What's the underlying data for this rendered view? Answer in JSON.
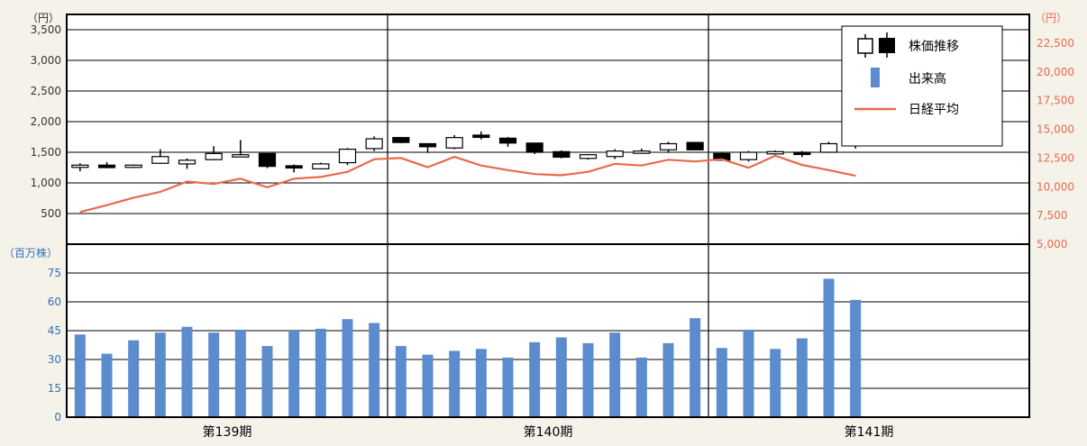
{
  "chart_data": {
    "type": "candlestick+line+bar",
    "units": {
      "price": "（円）",
      "nikkei": "（円）",
      "volume": "（百万株）"
    },
    "periods": [
      "第139期",
      "第140期",
      "第141期"
    ],
    "price_axis": {
      "ylim": [
        0,
        3750
      ],
      "ticks": [
        500,
        1000,
        1500,
        2000,
        2500,
        3000,
        3500
      ],
      "tick_labels": [
        "500",
        "1,000",
        "1,500",
        "2,000",
        "2,500",
        "3,000",
        "3,500"
      ]
    },
    "nikkei_axis": {
      "ylim": [
        5000,
        25000
      ],
      "ticks": [
        5000,
        7500,
        10000,
        12500,
        15000,
        17500,
        20000,
        22500
      ],
      "tick_labels": [
        "5,000",
        "7,500",
        "10,000",
        "12,500",
        "15,000",
        "17,500",
        "20,000",
        "22,500"
      ]
    },
    "volume_axis": {
      "ylim": [
        0,
        90
      ],
      "ticks": [
        0,
        15,
        30,
        45,
        60,
        75
      ],
      "tick_labels": [
        "0",
        "15",
        "30",
        "45",
        "60",
        "75"
      ]
    },
    "legend": {
      "candle": "株価推移",
      "volume": "出来高",
      "nikkei": "日経平均"
    },
    "colors": {
      "volume_bar": "#5b8ccd",
      "nikkei_line": "#e86a4c",
      "price_axis_text": "#333333",
      "nikkei_axis_text": "#e86a4c",
      "volume_axis_text": "#3070b8",
      "candle_down": "#000000",
      "candle_up": "#ffffff",
      "background": "#f5f2ea",
      "plot_bg": "#ffffff"
    },
    "candles": [
      {
        "o": 1290,
        "h": 1320,
        "l": 1190,
        "c": 1290
      },
      {
        "o": 1290,
        "h": 1340,
        "l": 1240,
        "c": 1250
      },
      {
        "o": 1260,
        "h": 1300,
        "l": 1240,
        "c": 1290
      },
      {
        "o": 1320,
        "h": 1550,
        "l": 1310,
        "c": 1430
      },
      {
        "o": 1310,
        "h": 1400,
        "l": 1230,
        "c": 1370
      },
      {
        "o": 1380,
        "h": 1600,
        "l": 1370,
        "c": 1480
      },
      {
        "o": 1450,
        "h": 1700,
        "l": 1430,
        "c": 1460
      },
      {
        "o": 1480,
        "h": 1480,
        "l": 1240,
        "c": 1270
      },
      {
        "o": 1280,
        "h": 1300,
        "l": 1170,
        "c": 1250
      },
      {
        "o": 1230,
        "h": 1330,
        "l": 1220,
        "c": 1310
      },
      {
        "o": 1330,
        "h": 1570,
        "l": 1290,
        "c": 1550
      },
      {
        "o": 1560,
        "h": 1760,
        "l": 1520,
        "c": 1720
      },
      {
        "o": 1740,
        "h": 1740,
        "l": 1650,
        "c": 1660
      },
      {
        "o": 1640,
        "h": 1640,
        "l": 1490,
        "c": 1590
      },
      {
        "o": 1570,
        "h": 1780,
        "l": 1550,
        "c": 1740
      },
      {
        "o": 1780,
        "h": 1840,
        "l": 1710,
        "c": 1750
      },
      {
        "o": 1730,
        "h": 1750,
        "l": 1590,
        "c": 1650
      },
      {
        "o": 1650,
        "h": 1650,
        "l": 1470,
        "c": 1500
      },
      {
        "o": 1510,
        "h": 1530,
        "l": 1400,
        "c": 1420
      },
      {
        "o": 1400,
        "h": 1470,
        "l": 1380,
        "c": 1460
      },
      {
        "o": 1430,
        "h": 1550,
        "l": 1390,
        "c": 1520
      },
      {
        "o": 1500,
        "h": 1560,
        "l": 1480,
        "c": 1520
      },
      {
        "o": 1540,
        "h": 1670,
        "l": 1490,
        "c": 1640
      },
      {
        "o": 1660,
        "h": 1660,
        "l": 1540,
        "c": 1540
      },
      {
        "o": 1480,
        "h": 1490,
        "l": 1370,
        "c": 1370
      },
      {
        "o": 1380,
        "h": 1520,
        "l": 1350,
        "c": 1500
      },
      {
        "o": 1480,
        "h": 1530,
        "l": 1460,
        "c": 1510
      },
      {
        "o": 1500,
        "h": 1520,
        "l": 1420,
        "c": 1470
      },
      {
        "o": 1500,
        "h": 1670,
        "l": 1490,
        "c": 1640
      },
      {
        "o": 1610,
        "h": 1900,
        "l": 1560,
        "c": 1820
      }
    ],
    "nikkei": [
      7800,
      8400,
      9050,
      9550,
      10450,
      10250,
      10700,
      9950,
      10700,
      10850,
      11300,
      12400,
      12500,
      11700,
      12600,
      11850,
      11450,
      11100,
      11000,
      11300,
      12000,
      11850,
      12350,
      12200,
      12400,
      11650,
      12700,
      11900,
      11450,
      10950
    ],
    "volume": [
      43,
      33,
      40,
      44,
      47,
      44,
      45.5,
      37,
      45,
      46,
      51,
      49,
      37,
      32.5,
      34.5,
      35.5,
      31,
      39,
      41.5,
      38.5,
      44,
      31,
      38.5,
      51.5,
      36,
      45.5,
      35.5,
      41,
      72,
      61
    ]
  }
}
